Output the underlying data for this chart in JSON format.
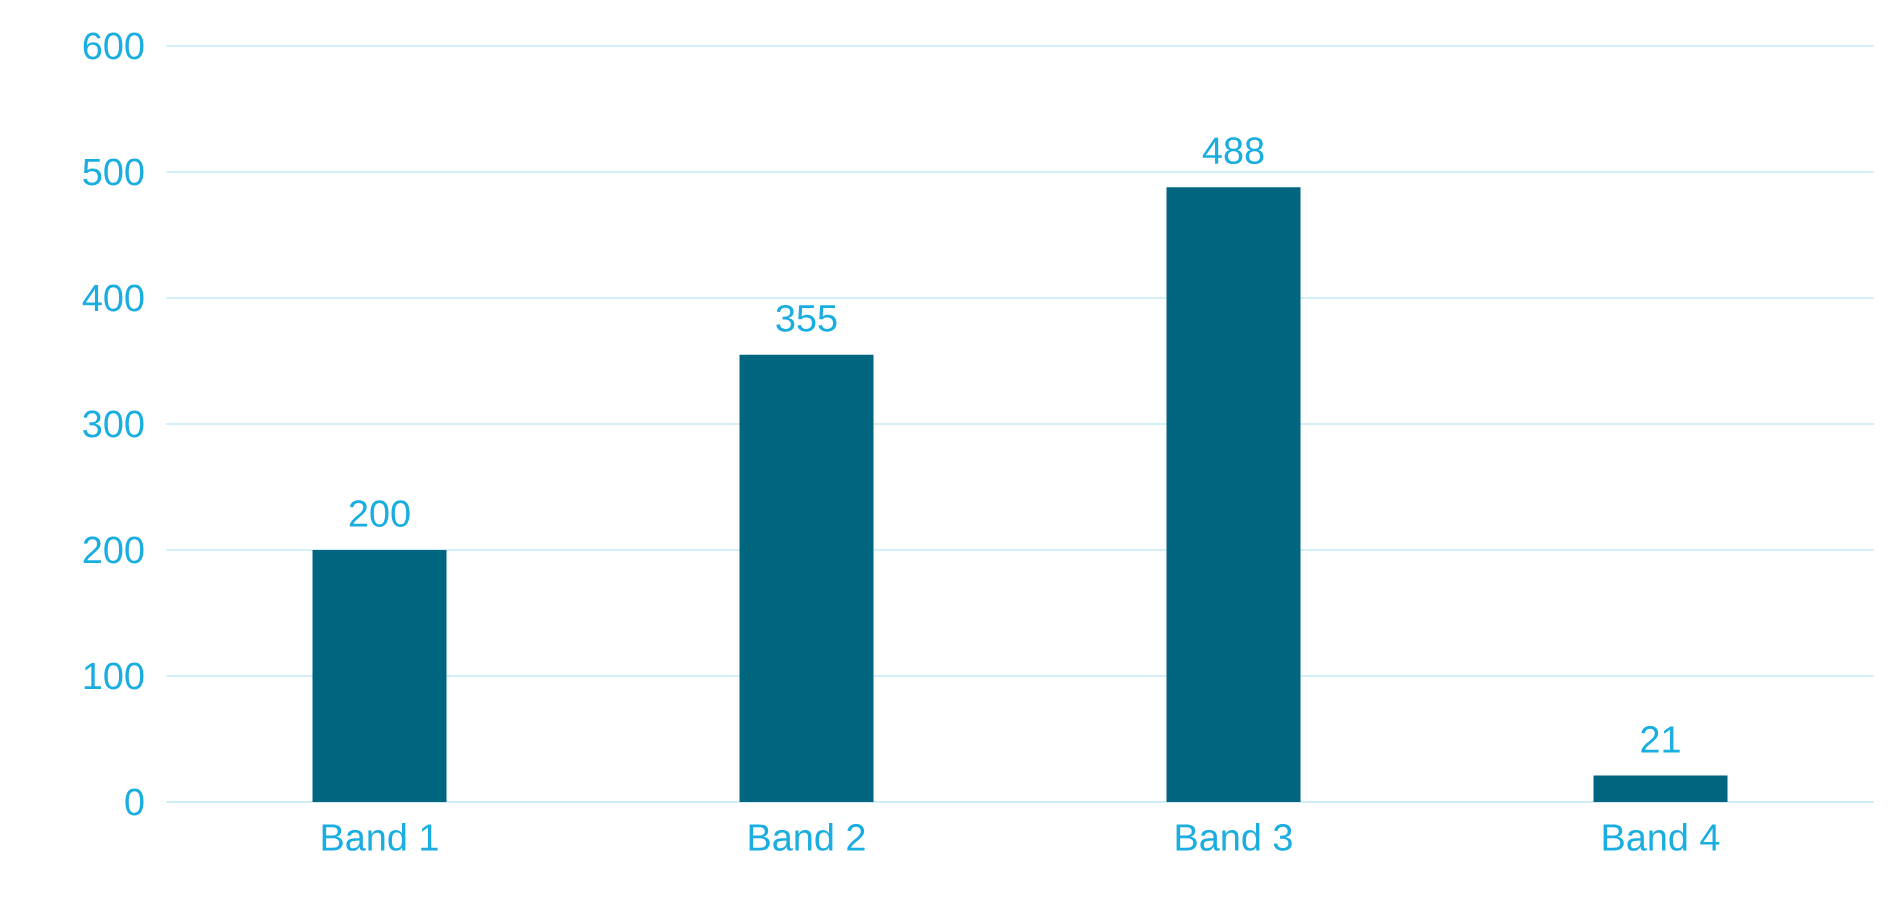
{
  "chart_data": {
    "type": "bar",
    "categories": [
      "Band 1",
      "Band 2",
      "Band 3",
      "Band 4"
    ],
    "values": [
      200,
      355,
      488,
      21
    ],
    "color": "#00657f",
    "ylim": [
      0,
      600
    ],
    "yticks": [
      0,
      100,
      200,
      300,
      400,
      500,
      600
    ],
    "grid": "y",
    "data_labels": true
  }
}
